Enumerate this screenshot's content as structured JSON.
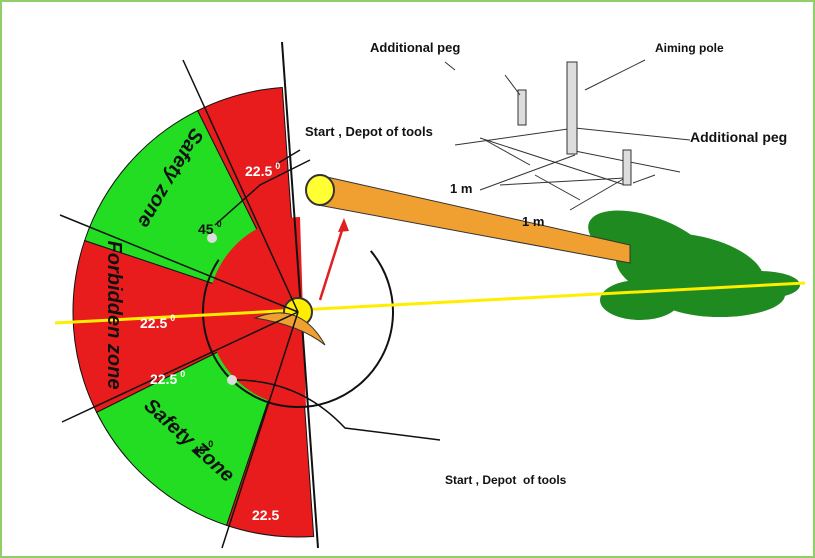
{
  "labels": {
    "top_peg": "Additional peg",
    "aiming_pole": "Aiming pole",
    "right_peg": "Additional peg",
    "start_top": "Start , Depot of tools",
    "start_bottom": "Start , Depot  of tools",
    "distance_1": "1 m",
    "distance_2": "1 m"
  },
  "zones": {
    "top": "Safety zone",
    "middle": "Forbidden zone",
    "bottom": "Safety Zone"
  },
  "angles": [
    {
      "text": "22.5",
      "sup": "0"
    },
    {
      "text": "45",
      "sup": "0"
    },
    {
      "text": "22.5",
      "sup": "0"
    },
    {
      "text": "22.5",
      "sup": "0"
    },
    {
      "text": "45",
      "sup": "0"
    },
    {
      "text": "22.5"
    }
  ]
}
